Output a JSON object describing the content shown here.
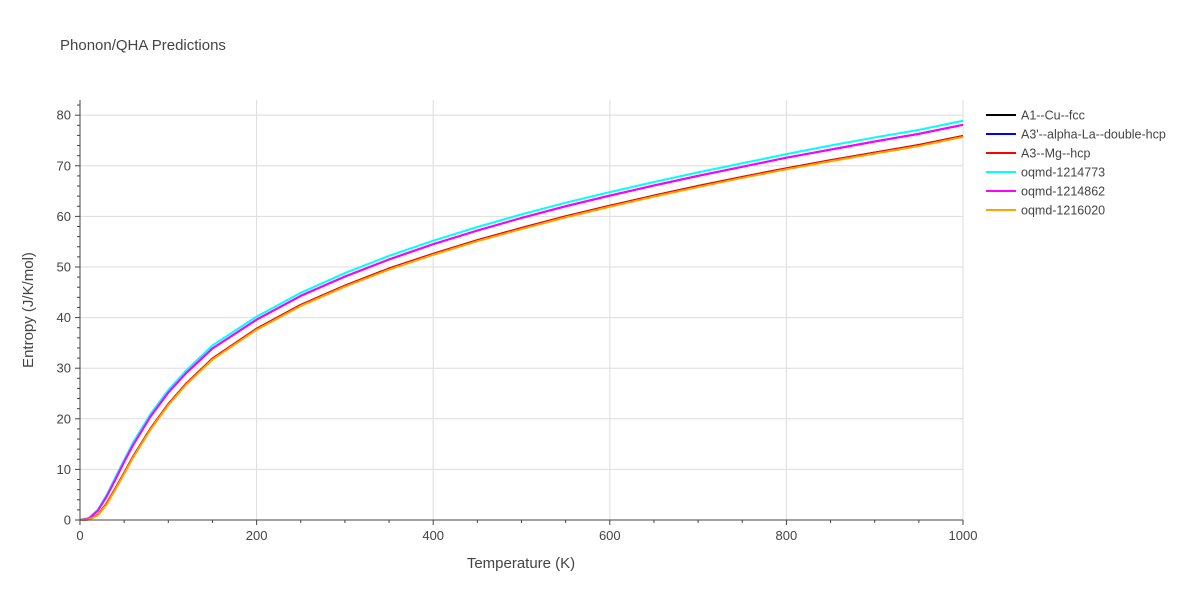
{
  "chart_data": {
    "type": "line",
    "title": "Phonon/QHA Predictions",
    "xlabel": "Temperature (K)",
    "ylabel": "Entropy (J/K/mol)",
    "xlim": [
      0,
      1000
    ],
    "ylim": [
      0,
      83
    ],
    "x_ticks": [
      0,
      200,
      400,
      600,
      800,
      1000
    ],
    "y_ticks": [
      0,
      10,
      20,
      30,
      40,
      50,
      60,
      70,
      80
    ],
    "grid": true,
    "legend_position": "right",
    "x": [
      0,
      10,
      20,
      30,
      40,
      50,
      60,
      80,
      100,
      120,
      150,
      200,
      250,
      300,
      350,
      400,
      450,
      500,
      550,
      600,
      650,
      700,
      750,
      800,
      850,
      900,
      950,
      1000
    ],
    "series": [
      {
        "name": "A1--Cu--fcc",
        "color": "#000000",
        "values": [
          0,
          0.1,
          1.0,
          3.2,
          6.2,
          9.3,
          12.5,
          18.1,
          22.9,
          26.9,
          31.9,
          37.8,
          42.5,
          46.3,
          49.7,
          52.6,
          55.3,
          57.7,
          60.0,
          62.1,
          64.1,
          66.0,
          67.8,
          69.5,
          71.1,
          72.6,
          74.1,
          75.9
        ]
      },
      {
        "name": "A3'--alpha-La--double-hcp",
        "color": "#0000ff",
        "values": [
          0,
          0.3,
          1.8,
          4.6,
          8.0,
          11.5,
          14.8,
          20.5,
          25.2,
          29.0,
          33.9,
          39.6,
          44.3,
          48.1,
          51.5,
          54.5,
          57.2,
          59.7,
          62.0,
          64.1,
          66.1,
          68.0,
          69.8,
          71.6,
          73.2,
          74.8,
          76.3,
          78.1
        ]
      },
      {
        "name": "A3--Mg--hcp",
        "color": "#ff0000",
        "values": [
          0,
          0.1,
          1.0,
          3.2,
          6.2,
          9.3,
          12.5,
          18.1,
          22.9,
          26.9,
          31.9,
          37.8,
          42.5,
          46.3,
          49.7,
          52.6,
          55.3,
          57.7,
          60.0,
          62.1,
          64.1,
          66.0,
          67.8,
          69.5,
          71.1,
          72.6,
          74.1,
          75.9
        ]
      },
      {
        "name": "oqmd-1214773",
        "color": "#00ffff",
        "values": [
          0,
          0.4,
          2.0,
          4.9,
          8.4,
          11.9,
          15.3,
          21.0,
          25.7,
          29.5,
          34.5,
          40.2,
          44.9,
          48.8,
          52.2,
          55.2,
          57.9,
          60.4,
          62.7,
          64.8,
          66.8,
          68.7,
          70.5,
          72.3,
          74.0,
          75.6,
          77.1,
          78.9
        ]
      },
      {
        "name": "oqmd-1214862",
        "color": "#ff00ff",
        "values": [
          0,
          0.3,
          1.8,
          4.6,
          8.0,
          11.5,
          14.8,
          20.5,
          25.2,
          29.0,
          33.9,
          39.6,
          44.3,
          48.1,
          51.5,
          54.5,
          57.2,
          59.7,
          62.0,
          64.1,
          66.1,
          68.0,
          69.8,
          71.6,
          73.2,
          74.8,
          76.3,
          78.1
        ]
      },
      {
        "name": "oqmd-1216020",
        "color": "#ffa500",
        "values": [
          0,
          0.1,
          0.9,
          3.0,
          6.0,
          9.1,
          12.3,
          17.9,
          22.7,
          26.7,
          31.7,
          37.6,
          42.3,
          46.1,
          49.5,
          52.4,
          55.1,
          57.5,
          59.8,
          61.9,
          63.9,
          65.8,
          67.6,
          69.3,
          70.9,
          72.4,
          73.9,
          75.7
        ]
      }
    ]
  }
}
